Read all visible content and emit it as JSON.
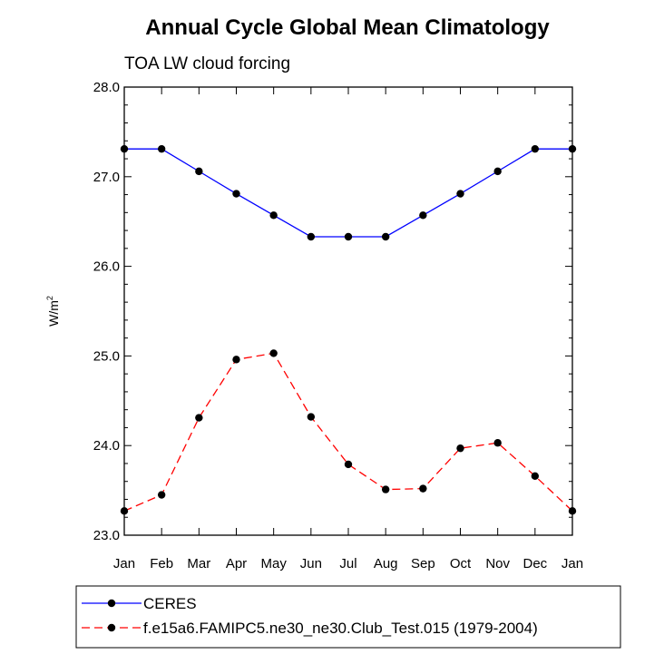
{
  "chart_data": {
    "type": "line",
    "title": "Annual Cycle Global Mean Climatology",
    "subtitle": "TOA LW cloud forcing",
    "xlabel": "",
    "ylabel": "W/m",
    "ylabel_superscript": "2",
    "categories": [
      "Jan",
      "Feb",
      "Mar",
      "Apr",
      "May",
      "Jun",
      "Jul",
      "Aug",
      "Sep",
      "Oct",
      "Nov",
      "Dec",
      "Jan"
    ],
    "ylim": [
      23.0,
      28.0
    ],
    "yticks": [
      23.0,
      24.0,
      25.0,
      26.0,
      27.0,
      28.0
    ],
    "ytick_labels": [
      "23.0",
      "24.0",
      "25.0",
      "26.0",
      "27.0",
      "28.0"
    ],
    "grid": false,
    "legend_position": "bottom-left",
    "series": [
      {
        "name": "CERES",
        "color": "#0000ff",
        "dash": "solid",
        "marker": "filled-circle",
        "values": [
          27.31,
          27.31,
          27.06,
          26.81,
          26.57,
          26.33,
          26.33,
          26.33,
          26.57,
          26.81,
          27.06,
          27.31,
          27.31
        ]
      },
      {
        "name": "f.e15a6.FAMIPC5.ne30_ne30.Club_Test.015 (1979-2004)",
        "color": "#ff0000",
        "dash": "dashed",
        "marker": "filled-circle",
        "values": [
          23.27,
          23.45,
          24.31,
          24.96,
          25.03,
          24.32,
          23.79,
          23.51,
          23.52,
          23.97,
          24.03,
          23.66,
          23.27
        ]
      }
    ]
  }
}
